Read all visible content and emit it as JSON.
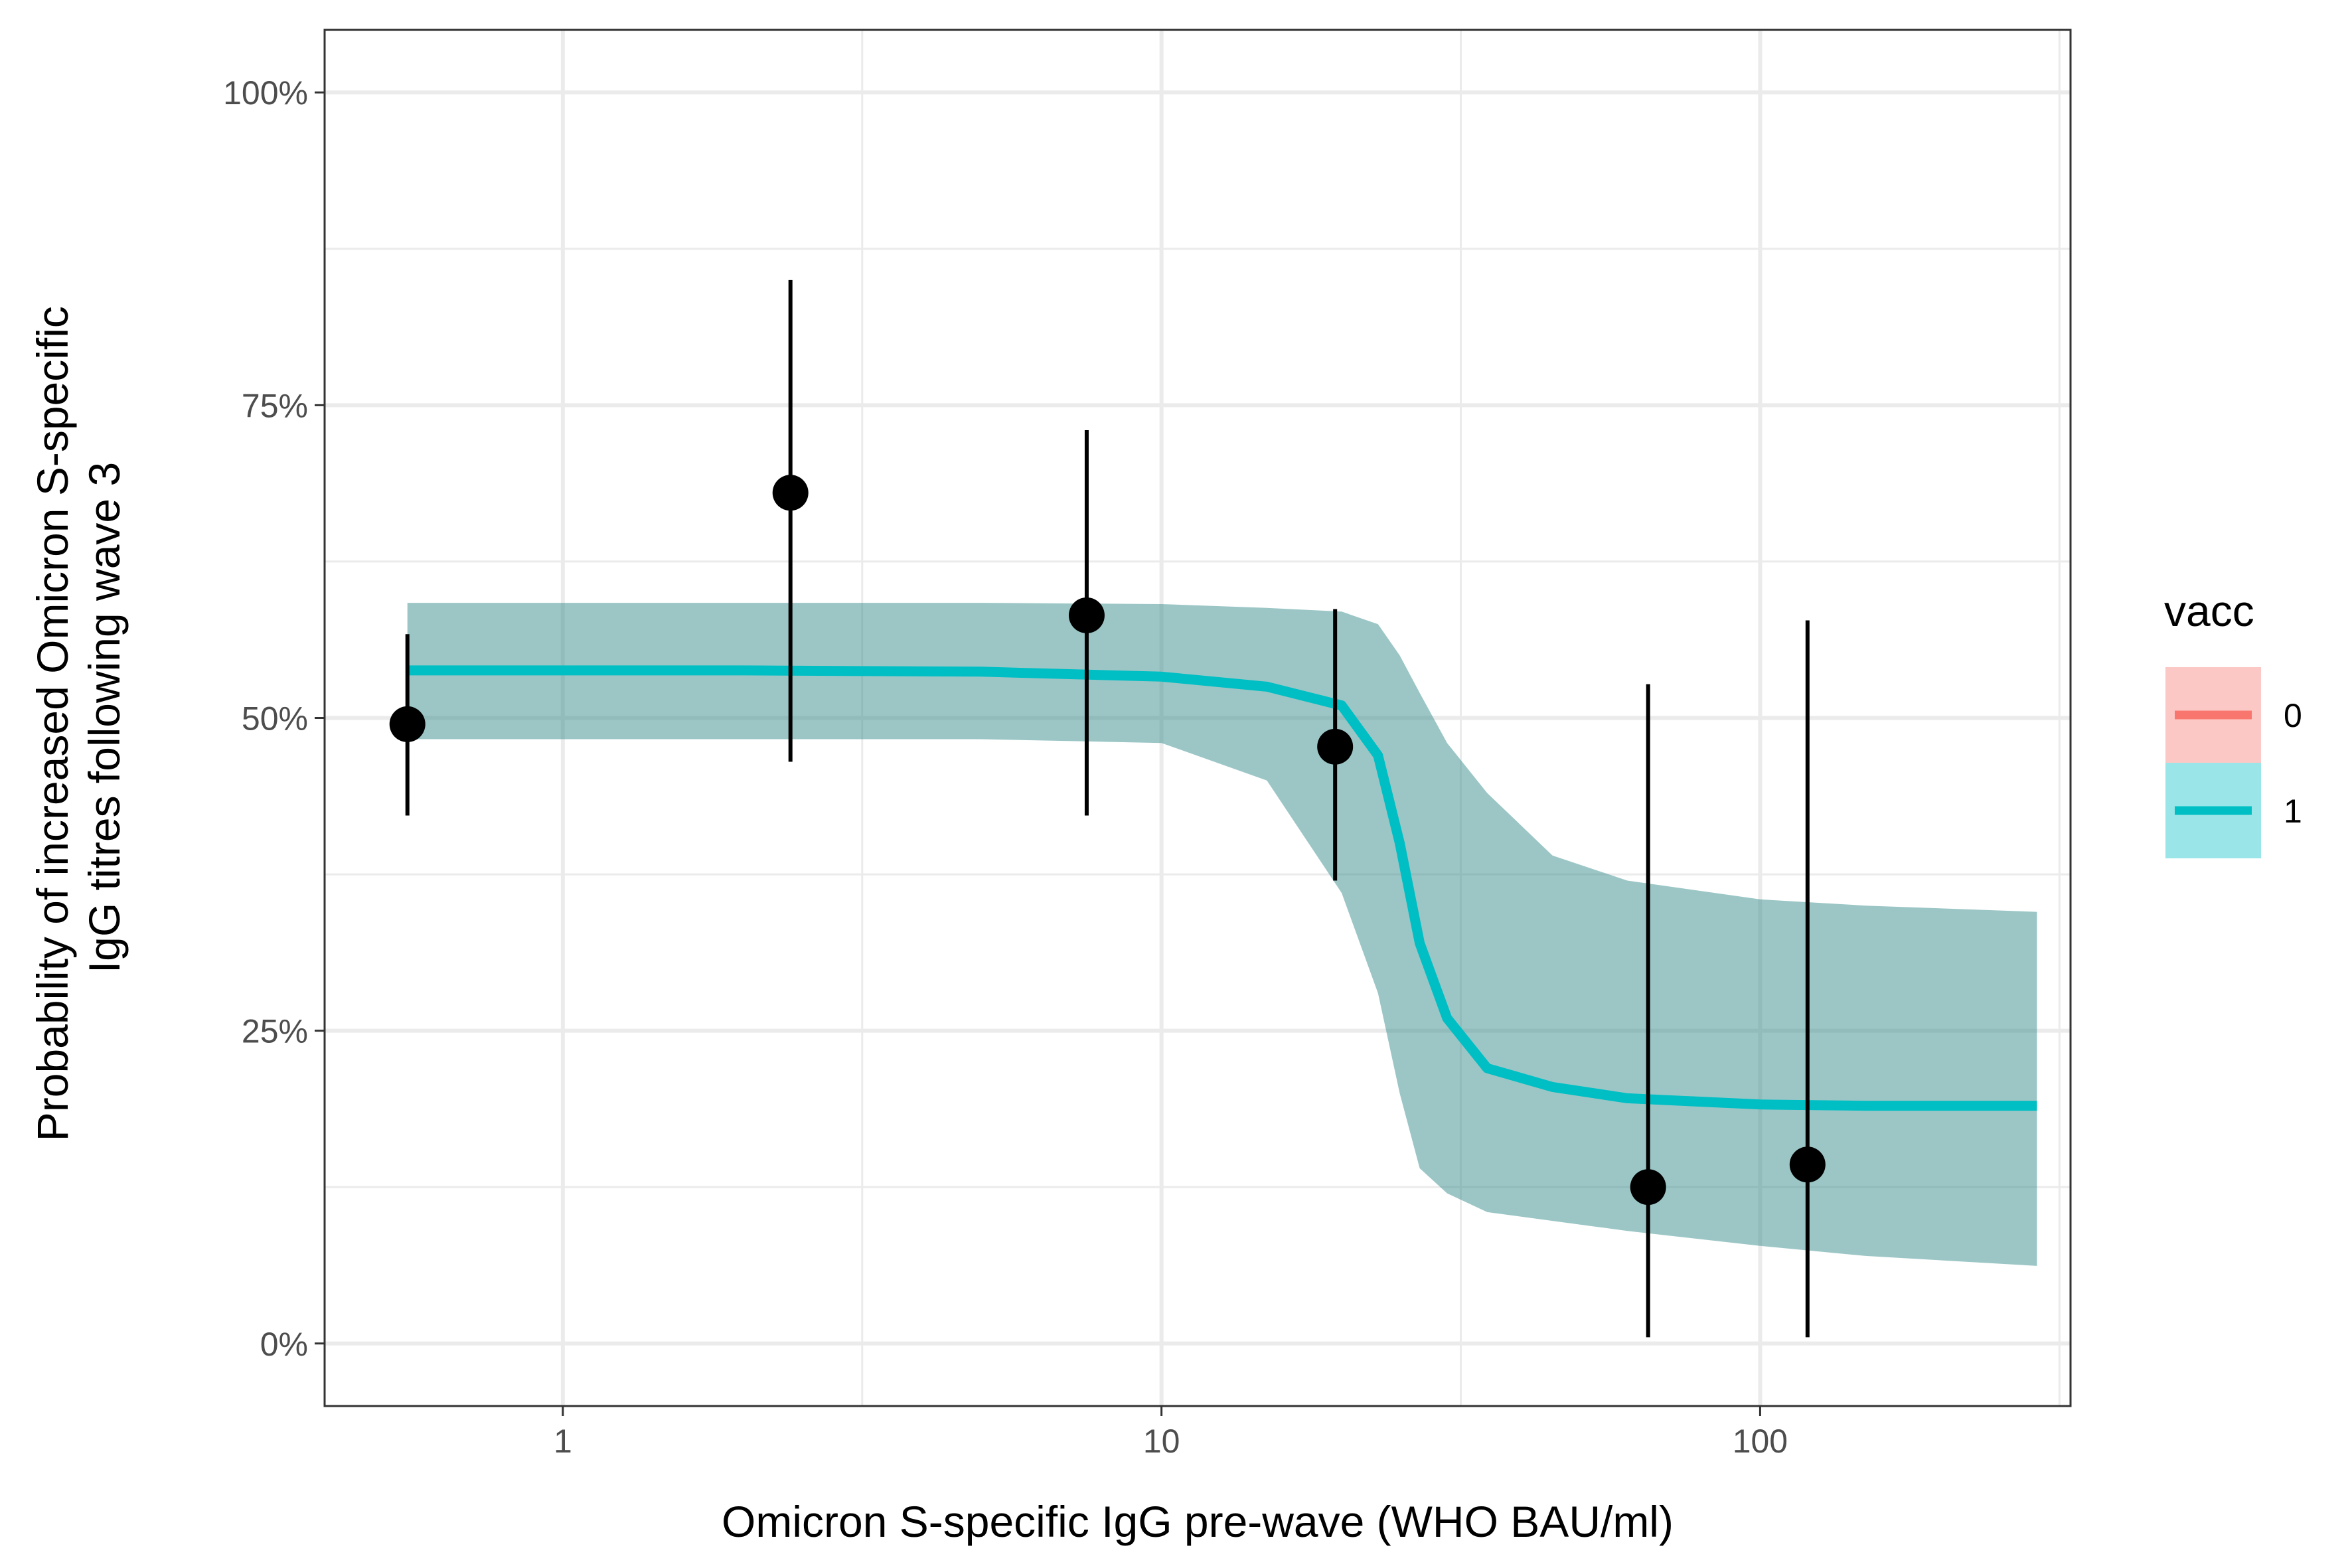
{
  "chart_data": {
    "type": "line",
    "xlabel": "Omicron S-specific IgG pre-wave (WHO BAU/ml)",
    "ylabel": [
      "Probability of increased Omicron S-specific",
      "IgG titres following wave 3"
    ],
    "x_scale": "log10",
    "xlim": [
      0.4,
      330
    ],
    "ylim": [
      -0.05,
      1.05
    ],
    "x_ticks": [
      1,
      10,
      100
    ],
    "x_tick_labels": [
      "1",
      "10",
      "100"
    ],
    "y_ticks": [
      0,
      0.25,
      0.5,
      0.75,
      1.0
    ],
    "y_tick_labels": [
      "0%",
      "25%",
      "50%",
      "75%",
      "100%"
    ],
    "grid": true,
    "legend": {
      "title": "vacc",
      "position": "right",
      "entries": [
        {
          "label": "0",
          "line_color": "#F8766D",
          "fill_color": "#F8766D"
        },
        {
          "label": "1",
          "line_color": "#00BFC4",
          "fill_color": "#00BFC4"
        }
      ]
    },
    "series": [
      {
        "name": "1",
        "color": "#00BFC4",
        "ribbon_color": "#3A8E8E",
        "x": [
          0.55,
          2.0,
          5.0,
          10.0,
          15.0,
          20.0,
          23.0,
          25.0,
          27.0,
          30.0,
          35.0,
          45.0,
          60.0,
          100.0,
          150.0,
          290.0
        ],
        "y": [
          0.538,
          0.538,
          0.537,
          0.533,
          0.525,
          0.51,
          0.47,
          0.4,
          0.32,
          0.26,
          0.22,
          0.205,
          0.196,
          0.191,
          0.19,
          0.19
        ],
        "lower": [
          0.483,
          0.483,
          0.483,
          0.48,
          0.45,
          0.36,
          0.28,
          0.2,
          0.14,
          0.12,
          0.105,
          0.098,
          0.09,
          0.078,
          0.07,
          0.062
        ],
        "upper": [
          0.592,
          0.592,
          0.592,
          0.591,
          0.588,
          0.585,
          0.575,
          0.55,
          0.52,
          0.48,
          0.44,
          0.39,
          0.37,
          0.355,
          0.35,
          0.345
        ]
      }
    ],
    "points": [
      {
        "x": 0.55,
        "y": 0.495,
        "lower": 0.422,
        "upper": 0.567
      },
      {
        "x": 2.4,
        "y": 0.68,
        "lower": 0.465,
        "upper": 0.85
      },
      {
        "x": 7.5,
        "y": 0.582,
        "lower": 0.422,
        "upper": 0.73
      },
      {
        "x": 19.5,
        "y": 0.477,
        "lower": 0.37,
        "upper": 0.587
      },
      {
        "x": 65.0,
        "y": 0.125,
        "lower": 0.005,
        "upper": 0.527
      },
      {
        "x": 120.0,
        "y": 0.143,
        "lower": 0.005,
        "upper": 0.578
      }
    ]
  }
}
